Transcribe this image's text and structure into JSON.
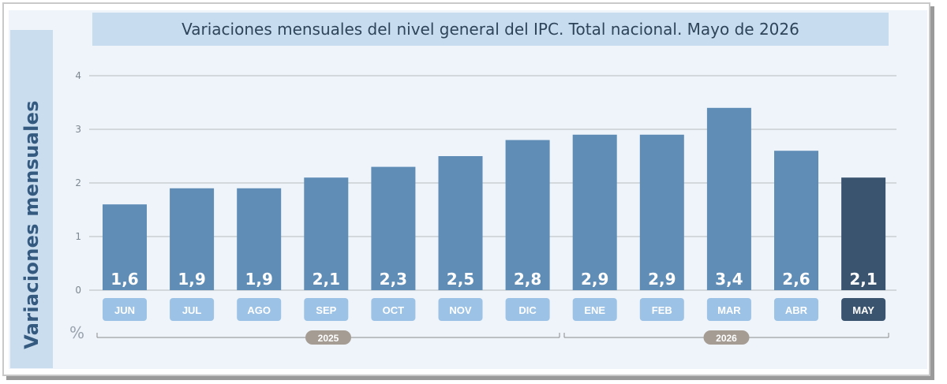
{
  "chart_data": {
    "type": "bar",
    "title": "Variaciones mensuales del nivel general del IPC. Total nacional. Mayo de 2026",
    "ylabel": "Variaciones mensuales",
    "unit": "%",
    "categories": [
      "JUN",
      "JUL",
      "AGO",
      "SEP",
      "OCT",
      "NOV",
      "DIC",
      "ENE",
      "FEB",
      "MAR",
      "ABR",
      "MAY"
    ],
    "values": [
      1.6,
      1.9,
      1.9,
      2.1,
      2.3,
      2.5,
      2.8,
      2.9,
      2.9,
      3.4,
      2.6,
      2.1
    ],
    "data_labels": [
      "1,6",
      "1,9",
      "1,9",
      "2,1",
      "2,3",
      "2,5",
      "2,8",
      "2,9",
      "2,9",
      "3,4",
      "2,6",
      "2,1"
    ],
    "ylim": [
      0,
      4
    ],
    "yticks": [
      0,
      1,
      2,
      3,
      4
    ],
    "grid": true,
    "highlight_category": "MAY",
    "years": [
      {
        "label": "2025",
        "categories": [
          "JUN",
          "JUL",
          "AGO",
          "SEP",
          "OCT",
          "NOV",
          "DIC"
        ]
      },
      {
        "label": "2026",
        "categories": [
          "ENE",
          "FEB",
          "MAR",
          "ABR",
          "MAY"
        ]
      }
    ],
    "colors": {
      "bar": "#5f8db6",
      "highlight": "#3a5470",
      "month_label_bg": "#9cc2e6",
      "year_badge": "#a59c94",
      "grid": "#b8bcc1"
    }
  }
}
